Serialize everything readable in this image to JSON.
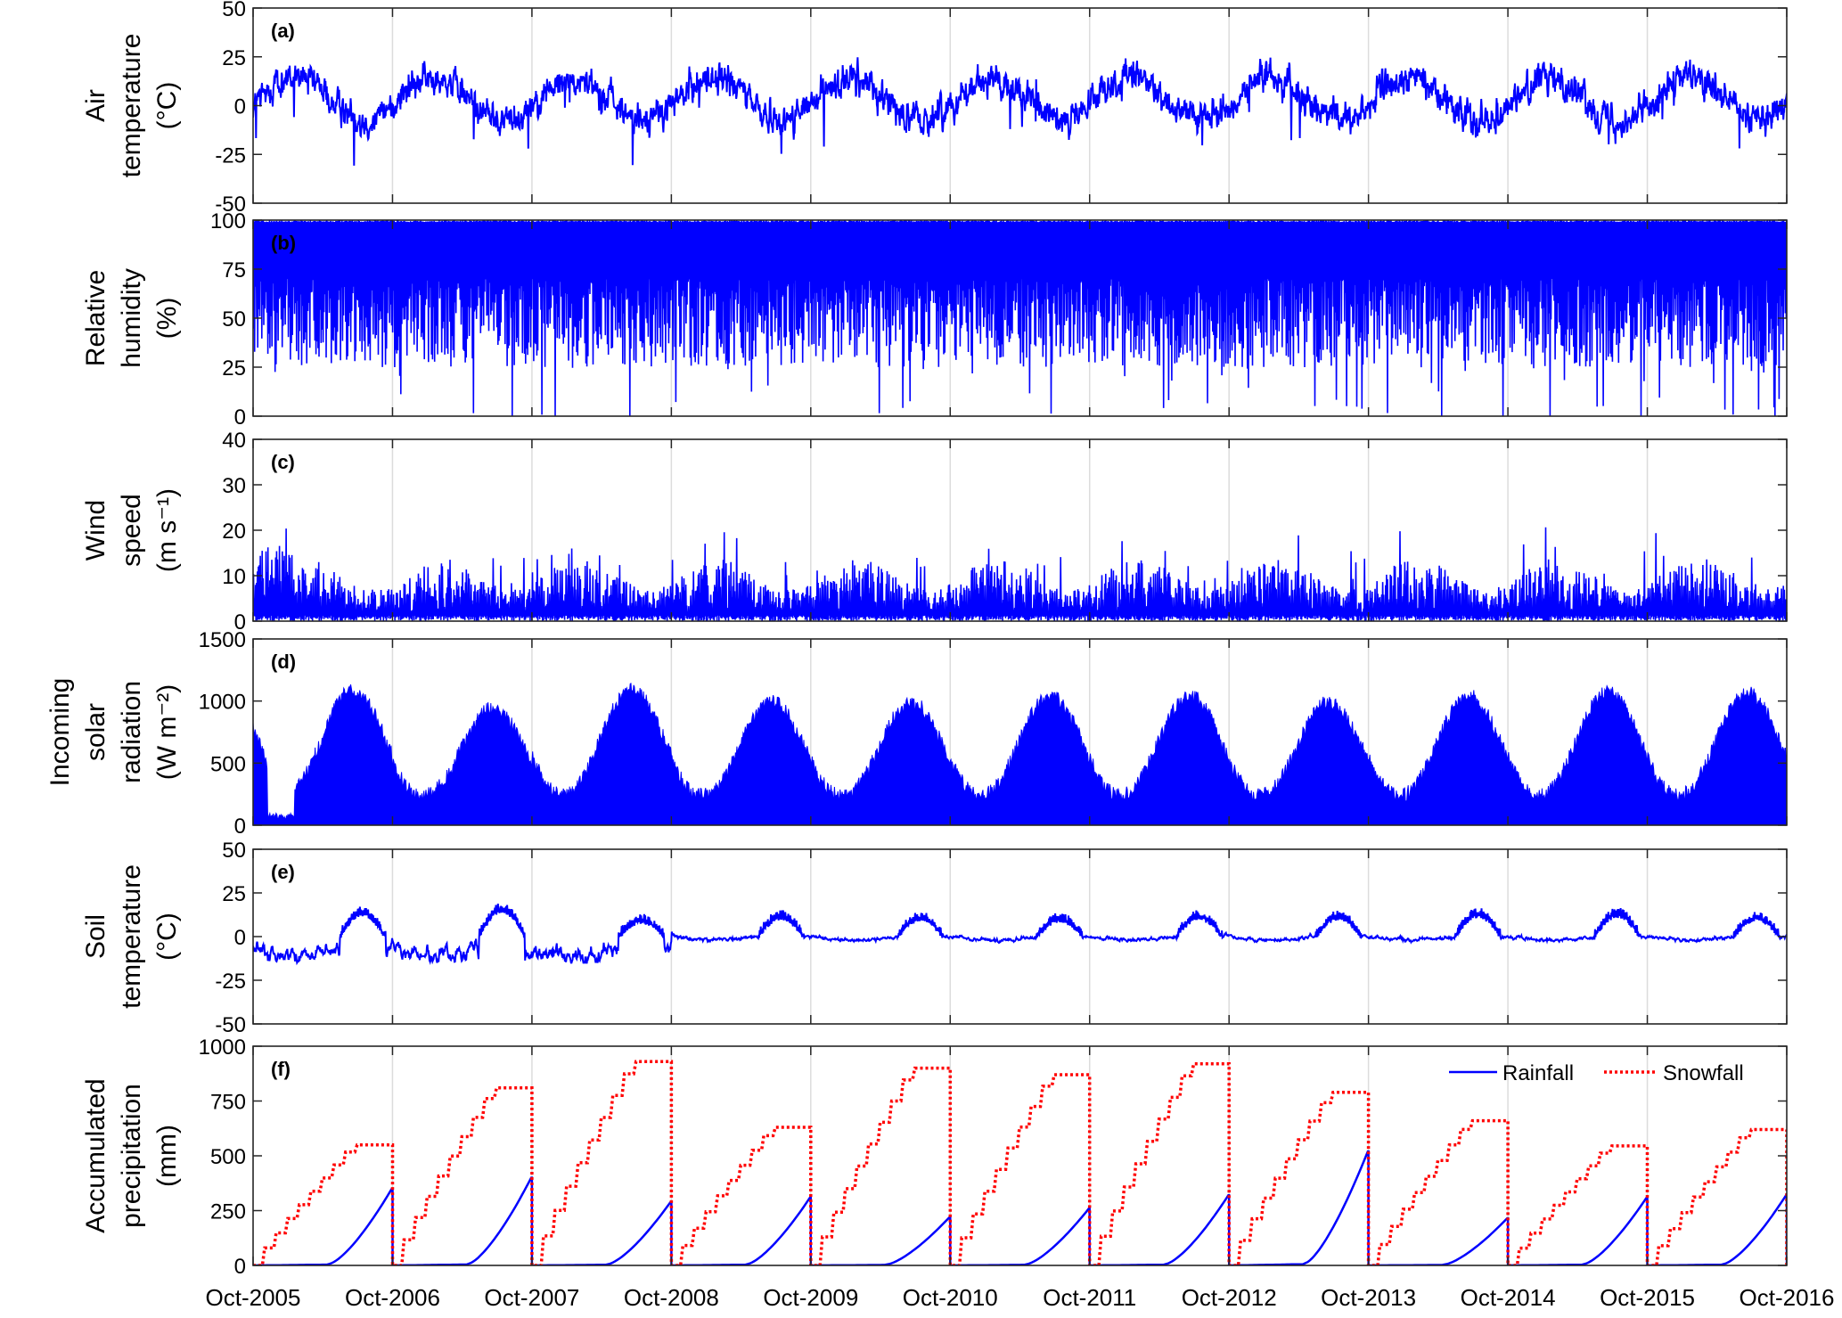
{
  "figure": {
    "x_tick_labels": [
      "Oct-2005",
      "Oct-2006",
      "Oct-2007",
      "Oct-2008",
      "Oct-2009",
      "Oct-2010",
      "Oct-2011",
      "Oct-2012",
      "Oct-2013",
      "Oct-2014",
      "Oct-2015",
      "Oct-2016"
    ]
  },
  "colors": {
    "series_blue": "#0000ff",
    "series_red": "#ff0000",
    "grid": "#dcdcdc",
    "axis": "#262626"
  },
  "chart_data": [
    {
      "panel": "(a)",
      "type": "line",
      "ylabel_lines": [
        "Air",
        "temperature",
        "(°C)"
      ],
      "ylim": [
        -50,
        50
      ],
      "yticks": [
        -50,
        -25,
        0,
        25,
        50
      ],
      "series": [
        {
          "color": "#0000ff",
          "x": [
            "Oct-2005",
            "Oct-2006",
            "Oct-2007",
            "Oct-2008",
            "Oct-2009",
            "Oct-2010",
            "Oct-2011",
            "Oct-2012",
            "Oct-2013",
            "Oct-2014",
            "Oct-2015",
            "Oct-2016"
          ],
          "seasonal_mean": {
            "winter": -7,
            "summer": 14
          },
          "approx_extremes": {
            "max": 25,
            "min": -37
          }
        }
      ],
      "grid": "vertical"
    },
    {
      "panel": "(b)",
      "type": "line",
      "ylabel_lines": [
        "Relative",
        "humidity",
        "(%)"
      ],
      "ylim": [
        0,
        100
      ],
      "yticks": [
        0,
        25,
        50,
        75,
        100
      ],
      "series": [
        {
          "color": "#0000ff",
          "approx_range": [
            0,
            100
          ],
          "typical_band": [
            25,
            100
          ]
        }
      ],
      "grid": "vertical"
    },
    {
      "panel": "(c)",
      "type": "line",
      "ylabel_lines": [
        "Wind",
        "speed",
        "(m s⁻¹)"
      ],
      "ylim": [
        0,
        40
      ],
      "yticks": [
        0,
        10,
        20,
        30,
        40
      ],
      "series": [
        {
          "color": "#0000ff",
          "approx_max": 25,
          "typical_band": [
            0,
            10
          ]
        }
      ],
      "grid": "vertical"
    },
    {
      "panel": "(d)",
      "type": "area",
      "ylabel_lines": [
        "Incoming",
        "solar",
        "radiation",
        "(W m⁻²)"
      ],
      "ylim": [
        0,
        1500
      ],
      "yticks": [
        0,
        500,
        1000,
        1500
      ],
      "series": [
        {
          "color": "#0000ff",
          "annual_peaks": [
            1150,
            1000,
            1150,
            1050,
            1050,
            1100,
            1100,
            1050,
            1100,
            1130,
            1120
          ],
          "winter_trough": 300
        }
      ],
      "grid": "vertical"
    },
    {
      "panel": "(e)",
      "type": "line",
      "ylabel_lines": [
        "Soil",
        "temperature",
        "(°C)"
      ],
      "ylim": [
        -50,
        50
      ],
      "yticks": [
        -50,
        -25,
        0,
        25,
        50
      ],
      "series": [
        {
          "color": "#0000ff",
          "summer_peaks": [
            19,
            22,
            13,
            16,
            15,
            14,
            16,
            16,
            18,
            18,
            15
          ],
          "approx_min": -15
        }
      ],
      "grid": "vertical"
    },
    {
      "panel": "(f)",
      "type": "line",
      "ylabel_lines": [
        "Accumulated",
        "precipitation",
        "(mm)"
      ],
      "ylim": [
        0,
        1000
      ],
      "yticks": [
        0,
        250,
        500,
        750,
        1000
      ],
      "legend": {
        "placement": "top-right",
        "entries": [
          "Rainfall",
          "Snowfall"
        ]
      },
      "series": [
        {
          "name": "Rainfall",
          "color": "#0000ff",
          "style": "solid",
          "year_end_totals": [
            350,
            400,
            290,
            310,
            220,
            260,
            320,
            520,
            215,
            310,
            320
          ]
        },
        {
          "name": "Snowfall",
          "color": "#ff0000",
          "style": "dotted",
          "year_end_totals": [
            550,
            810,
            930,
            630,
            900,
            870,
            920,
            790,
            660,
            545,
            620
          ]
        }
      ],
      "grid": "vertical"
    }
  ]
}
